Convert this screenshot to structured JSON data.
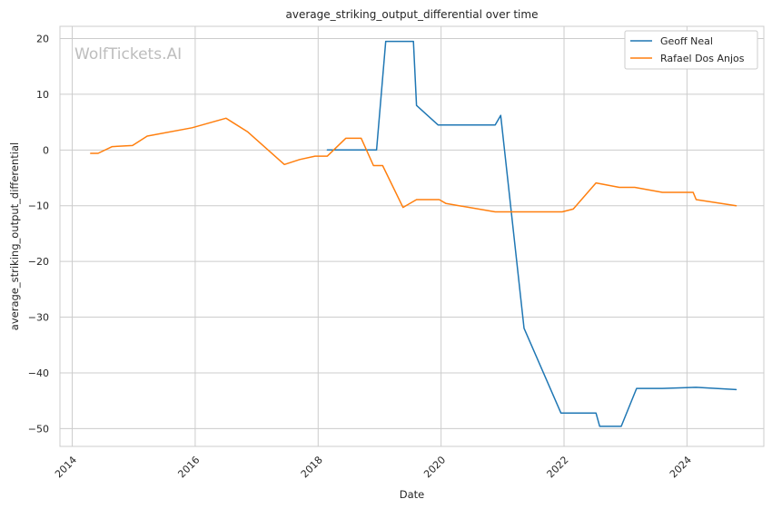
{
  "chart_data": {
    "type": "line",
    "title": "average_striking_output_differential over time",
    "xlabel": "Date",
    "ylabel": "average_striking_output_differential",
    "watermark": "WolfTickets.AI",
    "xlim": [
      2013.8,
      2025.25
    ],
    "ylim": [
      -53.2,
      22.2
    ],
    "x_ticks": [
      2014,
      2016,
      2018,
      2020,
      2022,
      2024
    ],
    "y_ticks": [
      20,
      10,
      0,
      -10,
      -20,
      -30,
      -40,
      -50
    ],
    "x_tick_labels": [
      "2014",
      "2016",
      "2018",
      "2020",
      "2022",
      "2024"
    ],
    "y_tick_labels": [
      "20",
      "10",
      "0",
      "−10",
      "−20",
      "−30",
      "−40",
      "−50"
    ],
    "grid": true,
    "legend_position": "top-right",
    "series": [
      {
        "name": "Geoff Neal",
        "color": "#1f77b4",
        "points": [
          [
            2018.15,
            0
          ],
          [
            2018.95,
            0
          ],
          [
            2019.1,
            19.5
          ],
          [
            2019.55,
            19.5
          ],
          [
            2019.6,
            8
          ],
          [
            2019.95,
            4.5
          ],
          [
            2020.88,
            4.5
          ],
          [
            2020.97,
            6.2
          ],
          [
            2021.35,
            -32
          ],
          [
            2021.95,
            -47.2
          ],
          [
            2022.52,
            -47.2
          ],
          [
            2022.58,
            -49.6
          ],
          [
            2022.93,
            -49.6
          ],
          [
            2023.18,
            -42.8
          ],
          [
            2023.6,
            -42.8
          ],
          [
            2024.15,
            -42.6
          ],
          [
            2024.8,
            -43
          ]
        ]
      },
      {
        "name": "Rafael Dos Anjos",
        "color": "#ff7f0e",
        "points": [
          [
            2014.3,
            -0.6
          ],
          [
            2014.42,
            -0.6
          ],
          [
            2014.65,
            0.6
          ],
          [
            2014.98,
            0.8
          ],
          [
            2015.22,
            2.5
          ],
          [
            2015.95,
            4.0
          ],
          [
            2016.5,
            5.7
          ],
          [
            2016.85,
            3.3
          ],
          [
            2017.45,
            -2.6
          ],
          [
            2017.7,
            -1.7
          ],
          [
            2017.95,
            -1.1
          ],
          [
            2018.15,
            -1.1
          ],
          [
            2018.45,
            2.1
          ],
          [
            2018.7,
            2.1
          ],
          [
            2018.9,
            -2.8
          ],
          [
            2019.05,
            -2.8
          ],
          [
            2019.38,
            -10.3
          ],
          [
            2019.6,
            -8.9
          ],
          [
            2019.97,
            -8.9
          ],
          [
            2020.08,
            -9.6
          ],
          [
            2020.88,
            -11.1
          ],
          [
            2021.2,
            -11.1
          ],
          [
            2021.97,
            -11.1
          ],
          [
            2022.15,
            -10.6
          ],
          [
            2022.52,
            -5.9
          ],
          [
            2022.9,
            -6.7
          ],
          [
            2023.15,
            -6.7
          ],
          [
            2023.6,
            -7.6
          ],
          [
            2024.1,
            -7.6
          ],
          [
            2024.15,
            -8.9
          ],
          [
            2024.8,
            -10
          ]
        ]
      }
    ]
  }
}
